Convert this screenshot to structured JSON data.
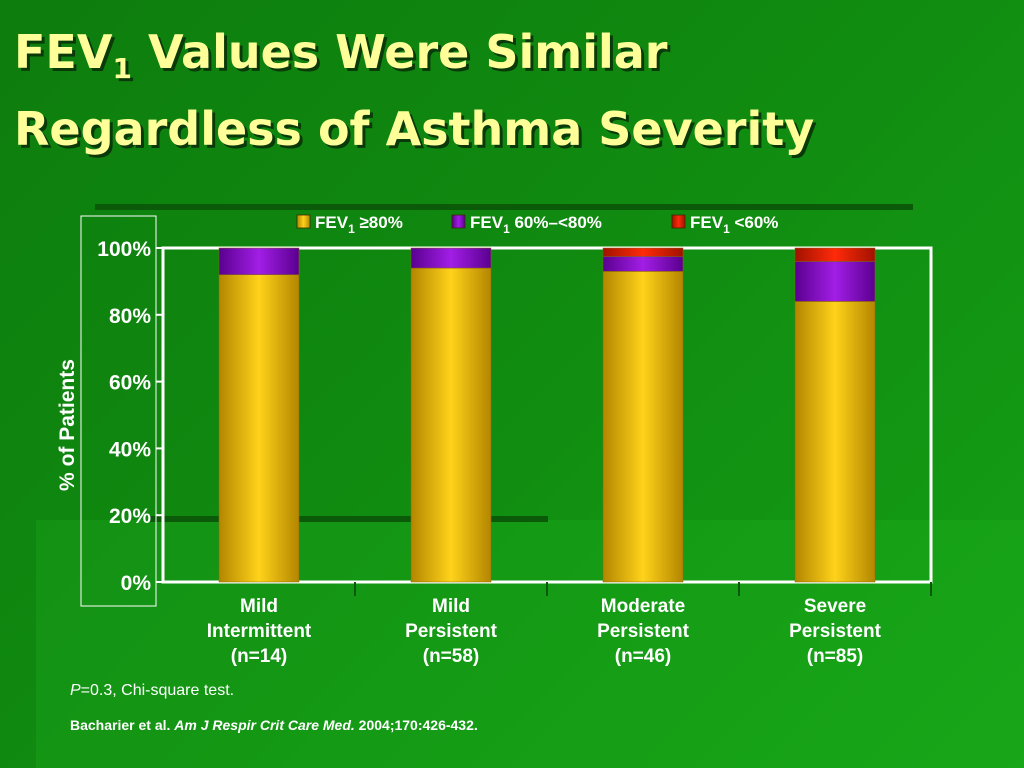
{
  "title": {
    "line1_prefix": "FEV",
    "line1_subscript": "1",
    "line1_suffix": " Values Were Similar",
    "line2": "Regardless of Asthma Severity"
  },
  "chart_data": {
    "type": "bar",
    "stacked": true,
    "ylabel": "% of Patients",
    "ylim": [
      0,
      100
    ],
    "yticks": [
      "0%",
      "20%",
      "40%",
      "60%",
      "80%",
      "100%"
    ],
    "legend_position": "top",
    "categories": [
      [
        "Mild",
        "Intermittent",
        "(n=14)"
      ],
      [
        "Mild",
        "Persistent",
        "(n=58)"
      ],
      [
        "Moderate",
        "Persistent",
        "(n=46)"
      ],
      [
        "Severe",
        "Persistent",
        "(n=85)"
      ]
    ],
    "series": [
      {
        "name": "FEV1 ≥80%",
        "legend": {
          "prefix": "FEV",
          "sub": "1",
          "suffix": " ≥80%"
        },
        "values": [
          92,
          94,
          93,
          84
        ],
        "color": "#f2c200"
      },
      {
        "name": "FEV1 60%–<80%",
        "legend": {
          "prefix": "FEV",
          "sub": "1",
          "suffix": " 60%–<80%"
        },
        "values": [
          8,
          6,
          4.5,
          12
        ],
        "color": "#8a00cc"
      },
      {
        "name": "FEV1 <60%",
        "legend": {
          "prefix": "FEV",
          "sub": "1",
          "suffix": " <60%"
        },
        "values": [
          0,
          0,
          2.5,
          4
        ],
        "color": "#e01a00"
      }
    ]
  },
  "footnotes": {
    "p_italic": "P",
    "p_rest": "=0.3, Chi-square test.",
    "citation_authors": "Bacharier et al. ",
    "citation_journal": "Am J Respir Crit Care Med.",
    "citation_rest": " 2004;170:426-432."
  }
}
